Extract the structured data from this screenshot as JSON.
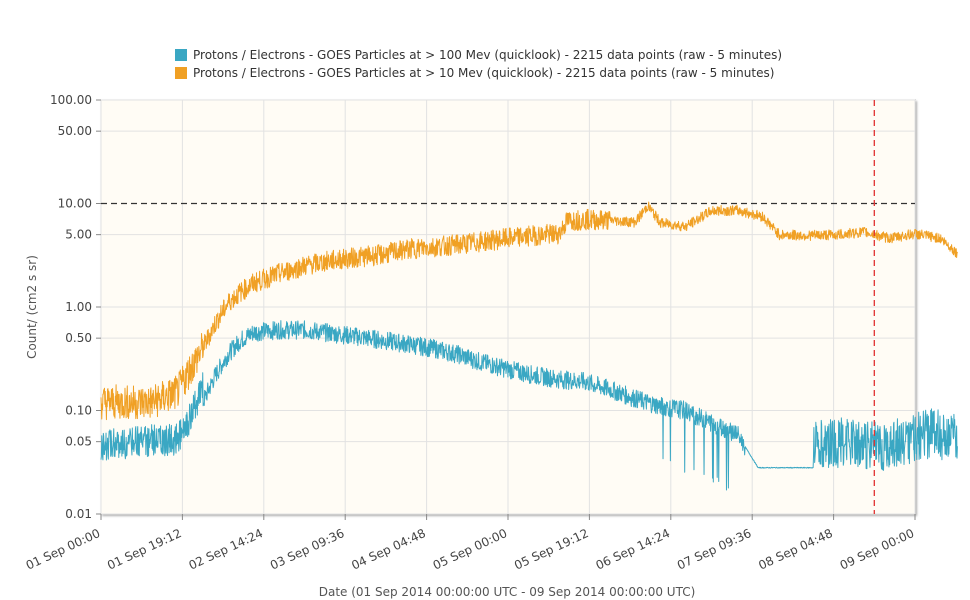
{
  "chart_data": {
    "type": "line",
    "xlabel": "Date (01 Sep 2014 00:00:00 UTC - 09 Sep 2014 00:00:00 UTC)",
    "ylabel": "Count/ (cm2 s sr)",
    "y_scale": "log",
    "ylim": [
      0.01,
      100
    ],
    "xlim": [
      "2014-09-01 00:00",
      "2014-09-09 00:00"
    ],
    "y_ticks": [
      "100.00",
      "50.00",
      "10.00",
      "5.00",
      "1.00",
      "0.50",
      "0.10",
      "0.05",
      "0.01"
    ],
    "y_tick_values": [
      100,
      50,
      10,
      5,
      1,
      0.5,
      0.1,
      0.05,
      0.01
    ],
    "x_ticks": [
      "01 Sep 00:00",
      "01 Sep 19:12",
      "02 Sep 14:24",
      "03 Sep 09:36",
      "04 Sep 04:48",
      "05 Sep 00:00",
      "05 Sep 19:12",
      "06 Sep 14:24",
      "07 Sep 09:36",
      "08 Sep 04:48",
      "09 Sep 00:00"
    ],
    "threshold": {
      "y": 10,
      "color": "#333333",
      "style": "dashed"
    },
    "current_time_marker": {
      "x": "2014-09-08 14:24",
      "color": "#e03030",
      "style": "dashed"
    },
    "grid": true,
    "legend_position": "top",
    "plot_background": "#fffcf5",
    "series": [
      {
        "name": "Protons / Electrons - GOES Particles at > 100 Mev (quicklook) - 2215 data points (raw - 5 minutes)",
        "color": "#3aa7c3",
        "x_hours": [
          0,
          6,
          12,
          18,
          21,
          24,
          27,
          30,
          33,
          36,
          42,
          48,
          54,
          60,
          66,
          72,
          78,
          84,
          90,
          96,
          102,
          108,
          114,
          120,
          126,
          132,
          138,
          140,
          146,
          150,
          155,
          160,
          168,
          174,
          178,
          184,
          190,
          196,
          202
        ],
        "values": [
          0.033,
          0.034,
          0.036,
          0.037,
          0.06,
          0.12,
          0.22,
          0.35,
          0.48,
          0.57,
          0.6,
          0.6,
          0.56,
          0.52,
          0.48,
          0.44,
          0.4,
          0.35,
          0.29,
          0.25,
          0.22,
          0.2,
          0.19,
          0.16,
          0.13,
          0.11,
          0.1,
          0.09,
          0.07,
          0.06,
          0.028,
          0.028,
          0.028,
          0.028,
          0.028,
          0.026,
          0.03,
          0.035,
          0.03
        ]
      },
      {
        "name": "Protons / Electrons - GOES Particles at > 10 Mev (quicklook) - 2215 data points (raw - 5 minutes)",
        "color": "#f0a024",
        "x_hours": [
          0,
          6,
          12,
          18,
          21,
          24,
          27,
          30,
          33,
          36,
          42,
          48,
          54,
          60,
          66,
          72,
          78,
          84,
          90,
          96,
          102,
          108,
          110,
          114,
          120,
          126,
          129,
          132,
          138,
          144,
          150,
          156,
          160,
          166,
          174,
          180,
          186,
          192,
          198,
          202
        ],
        "values": [
          0.12,
          0.12,
          0.12,
          0.15,
          0.25,
          0.4,
          0.7,
          1.1,
          1.4,
          1.7,
          2.1,
          2.5,
          2.8,
          3.0,
          3.2,
          3.6,
          3.8,
          4.0,
          4.3,
          4.6,
          4.9,
          5.1,
          6.8,
          7.0,
          6.9,
          6.6,
          9.5,
          6.5,
          6.0,
          8.5,
          8.6,
          7.5,
          5.0,
          4.9,
          5.0,
          5.3,
          4.6,
          5.1,
          4.6,
          3.3
        ]
      }
    ]
  }
}
